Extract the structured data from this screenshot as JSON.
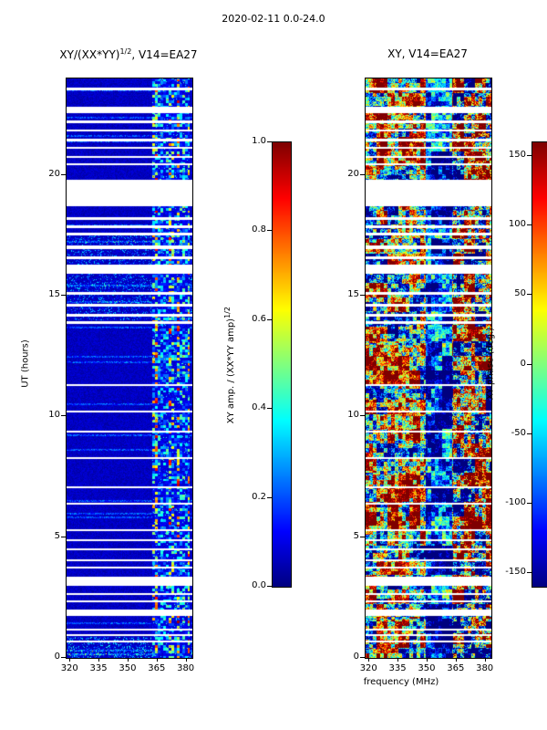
{
  "figure_title": "2020-02-11 0.0-24.0",
  "left_panel": {
    "title_base": "XY/(XX*YY)",
    "title_sup": "1/2",
    "title_rest": ", V14=EA27"
  },
  "right_panel": {
    "title": "XY, V14=EA27"
  },
  "x_axis_label": "frequency (MHz)",
  "y_axis_label": "UT (hours)",
  "left_colorbar": {
    "label_base": "XY amp. / (XX*YY amp)",
    "label_sup": "1/2"
  },
  "right_colorbar": {
    "label": "XY phase (deg.)"
  },
  "chart_data": [
    {
      "type": "heatmap",
      "title": "XY/(XX*YY)^(1/2), V14=EA27",
      "x_label": "frequency (MHz)",
      "y_label": "UT (hours)",
      "x_range": [
        318,
        383
      ],
      "y_range": [
        0,
        24
      ],
      "x_ticks": [
        320,
        335,
        350,
        365,
        380
      ],
      "y_ticks": [
        0,
        5,
        10,
        15,
        20
      ],
      "colormap": "jet",
      "colorbar": {
        "label": "XY amp. / (XX*YY amp)^(1/2)",
        "vmin": 0.0,
        "vmax": 1.0,
        "ticks": [
          1.0,
          0.8,
          0.6,
          0.4,
          0.2,
          0.0
        ],
        "tick_labels": [
          "1.0",
          "0.8",
          "0.6",
          "0.4",
          "0.2",
          "0.0"
        ]
      },
      "content_summary": "Cross-correlation amplitude ratio vs frequency and time. Mostly low values ~0.05 (dark blue) across 318-360 MHz; strong broadband RFI speckle (0.3-1.0, cyan/yellow/red blocks) in the 362-381 MHz band for most of the day; enhanced cyan speckle across all frequencies near UT 14-17.5 and UT 0-1; horizontal white stripes mark missing scans."
    },
    {
      "type": "heatmap",
      "title": "XY, V14=EA27",
      "x_label": "frequency (MHz)",
      "y_label": "UT (hours)",
      "x_range": [
        318,
        383
      ],
      "y_range": [
        0,
        24
      ],
      "x_ticks": [
        320,
        335,
        350,
        365,
        380
      ],
      "y_ticks": [
        0,
        5,
        10,
        15,
        20
      ],
      "colormap": "jet",
      "colorbar": {
        "label": "XY phase (deg.)",
        "vmin": -160,
        "vmax": 160,
        "ticks": [
          150,
          100,
          50,
          0,
          -50,
          -100,
          -150
        ],
        "tick_labels": [
          "150",
          "100",
          "50",
          "0",
          "-50",
          "-100",
          "-150"
        ]
      },
      "content_summary": "Cross-hand phase spanning the full +/-160 deg range in large coherent patches. Red/orange patches dominate below ~350 MHz around UT 0-1.5, 5.5-7.5, 9-13 and 20-24; a darker blue mid-band near 350-362 MHz; highly colorful RFI band 362-381 MHz; same missing-scan white stripes as the left panel."
    }
  ],
  "missing_ut_ranges": [
    [
      23.5,
      23.62
    ],
    [
      22.58,
      22.82
    ],
    [
      22.16,
      22.28
    ],
    [
      21.8,
      21.9
    ],
    [
      21.38,
      21.5
    ],
    [
      21.08,
      21.18
    ],
    [
      20.7,
      20.8
    ],
    [
      20.4,
      20.5
    ],
    [
      18.7,
      19.8
    ],
    [
      18.15,
      18.25
    ],
    [
      17.8,
      17.9
    ],
    [
      17.5,
      17.6
    ],
    [
      16.95,
      17.08
    ],
    [
      16.52,
      16.62
    ],
    [
      15.9,
      16.3
    ],
    [
      15.05,
      15.15
    ],
    [
      14.55,
      14.65
    ],
    [
      14.15,
      14.25
    ],
    [
      13.85,
      13.93
    ],
    [
      11.25,
      11.33
    ],
    [
      10.15,
      10.23
    ],
    [
      9.35,
      9.42
    ],
    [
      8.25,
      8.32
    ],
    [
      7.05,
      7.12
    ],
    [
      6.35,
      6.42
    ],
    [
      5.25,
      5.33
    ],
    [
      4.85,
      4.92
    ],
    [
      4.45,
      4.53
    ],
    [
      4.0,
      4.08
    ],
    [
      3.7,
      3.78
    ],
    [
      3.0,
      3.38
    ],
    [
      2.6,
      2.68
    ],
    [
      2.3,
      2.38
    ],
    [
      1.72,
      2.02
    ],
    [
      1.15,
      1.22
    ],
    [
      0.9,
      0.97
    ],
    [
      0.65,
      0.72
    ]
  ]
}
